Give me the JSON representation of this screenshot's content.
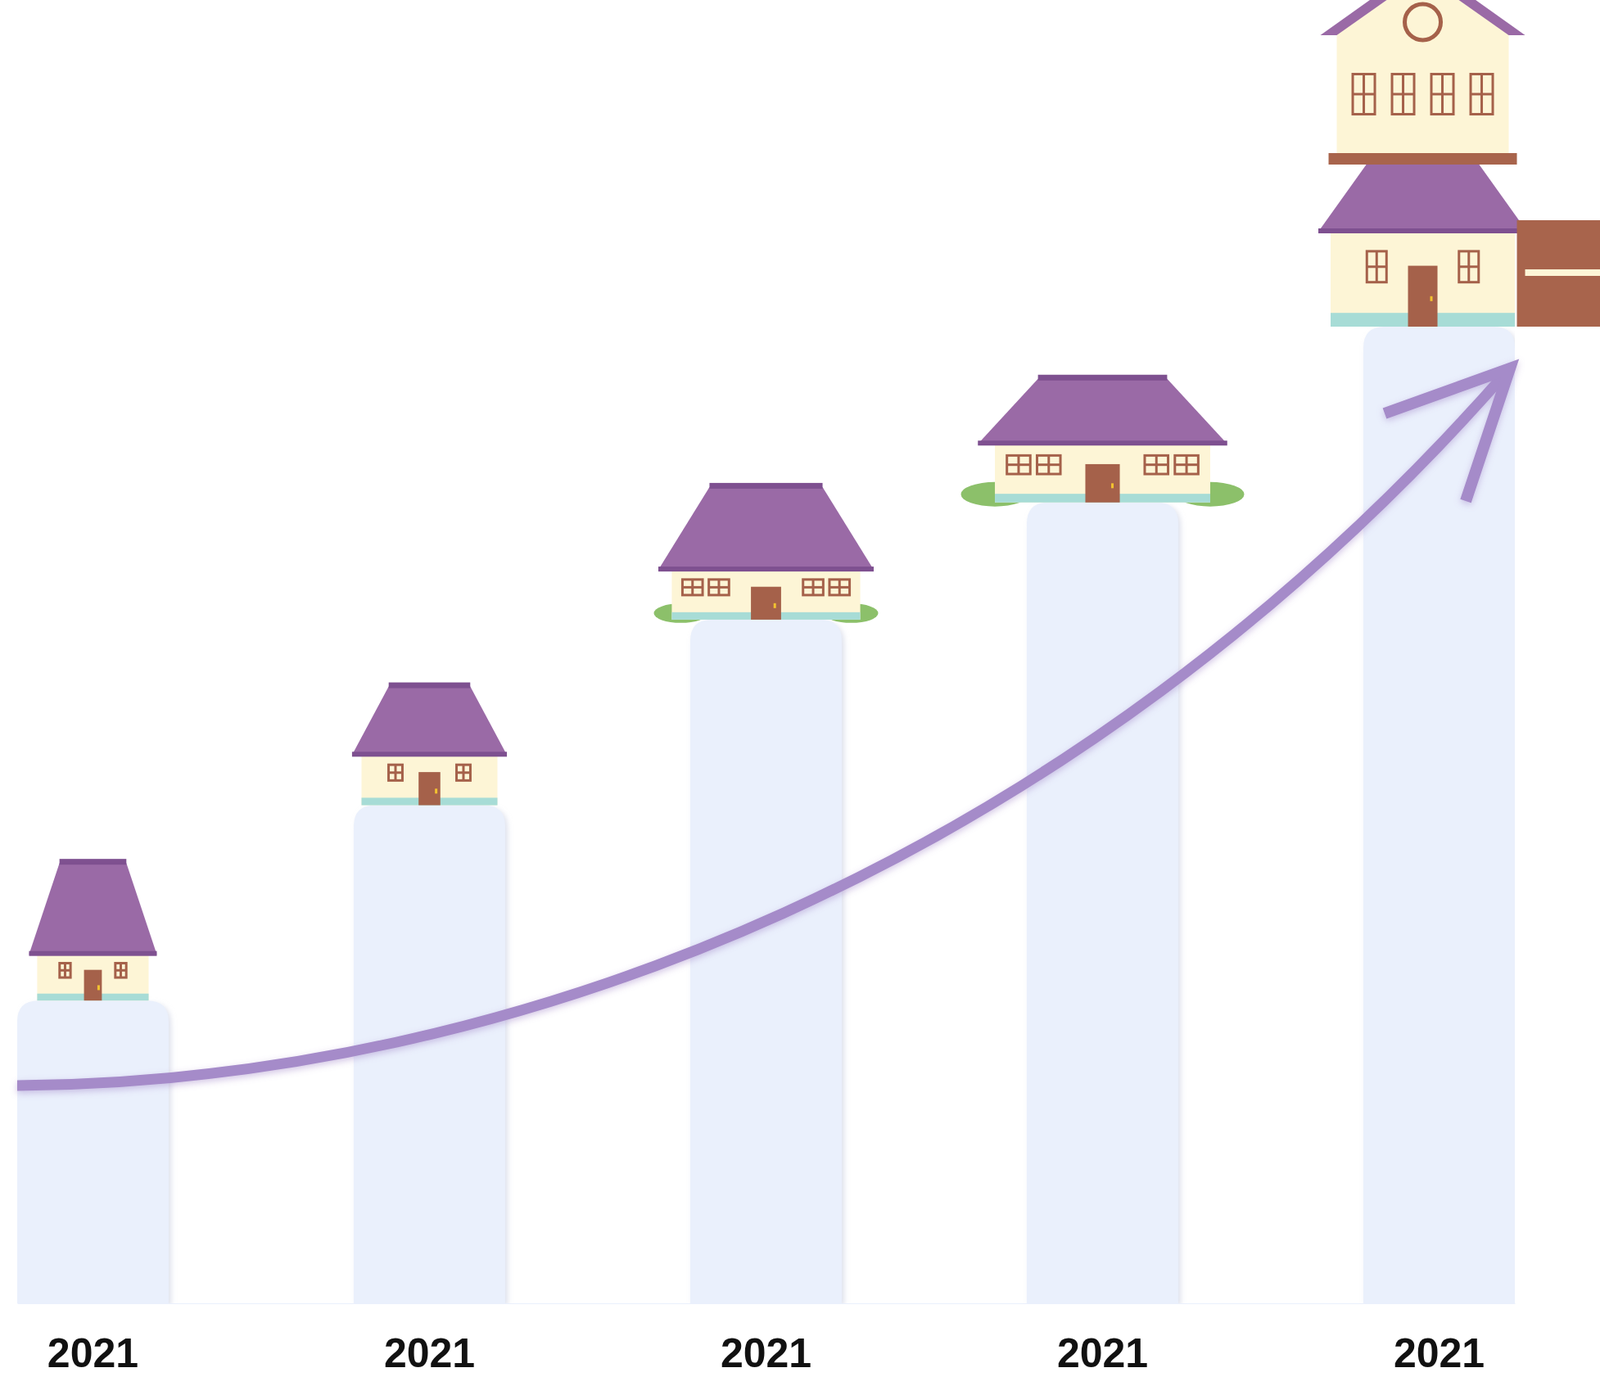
{
  "chart_data": {
    "type": "bar",
    "categories": [
      "2021",
      "2021",
      "2021",
      "2021",
      "2021"
    ],
    "values": [
      31,
      51,
      70,
      82,
      100
    ],
    "color": "#eaf0fc",
    "ylim": [
      0,
      100
    ],
    "tick_labels": "x"
  }
}
